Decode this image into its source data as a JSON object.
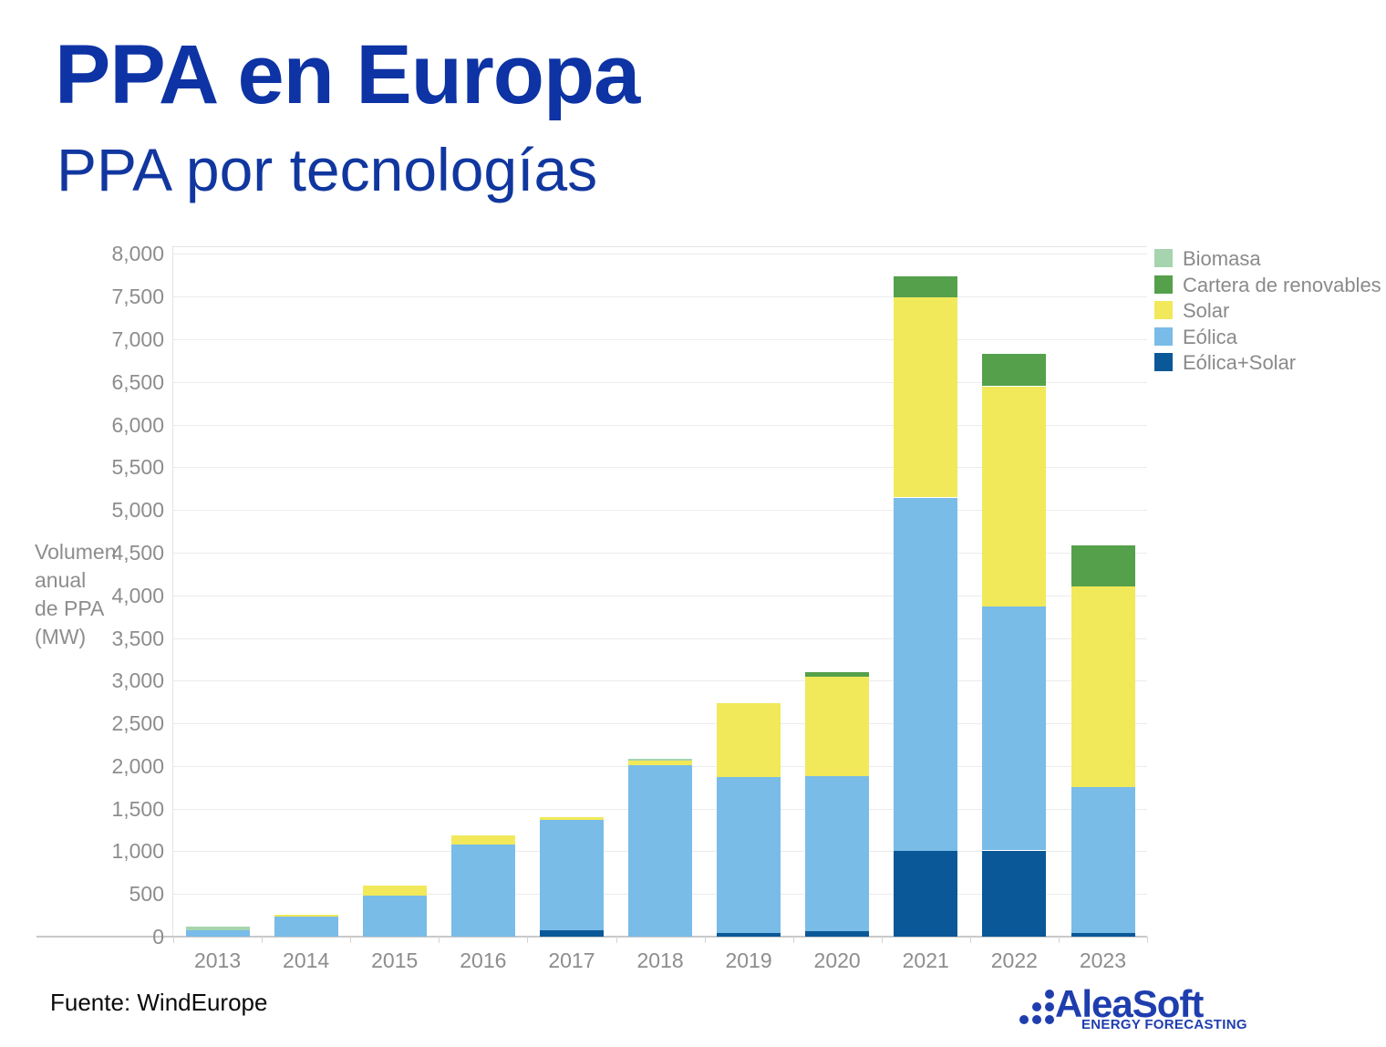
{
  "header": {
    "title": "PPA en Europa",
    "subtitle": "PPA por tecnologías"
  },
  "chart_data": {
    "type": "bar",
    "stacked": true,
    "categories": [
      "2013",
      "2014",
      "2015",
      "2016",
      "2017",
      "2018",
      "2019",
      "2020",
      "2021",
      "2022",
      "2023"
    ],
    "unit": "MW",
    "ylabel_lines": [
      "Volumen",
      "anual",
      "de PPA",
      "(MW)"
    ],
    "ylim": [
      0,
      8000
    ],
    "ytick_step": 500,
    "grid": true,
    "legend_position": "right",
    "series": [
      {
        "name": "Eólica+Solar",
        "color": "#0a5897",
        "values": [
          0,
          0,
          0,
          0,
          75,
          0,
          40,
          60,
          1005,
          1010,
          45
        ]
      },
      {
        "name": "Eólica",
        "color": "#79bce8",
        "values": [
          75,
          240,
          485,
          1075,
          1295,
          2010,
          1830,
          1820,
          4140,
          2855,
          1710
        ]
      },
      {
        "name": "Solar",
        "color": "#f1e95a",
        "values": [
          0,
          20,
          115,
          115,
          35,
          50,
          865,
          1165,
          2345,
          2585,
          2345
        ]
      },
      {
        "name": "Cartera de renovables",
        "color": "#55a04b",
        "values": [
          0,
          0,
          0,
          0,
          0,
          0,
          0,
          60,
          250,
          380,
          480
        ]
      },
      {
        "name": "Biomasa",
        "color": "#a6d4ae",
        "values": [
          45,
          0,
          0,
          0,
          0,
          20,
          0,
          0,
          0,
          0,
          0
        ]
      }
    ],
    "legend_order": [
      "Biomasa",
      "Cartera de renovables",
      "Solar",
      "Eólica",
      "Eólica+Solar"
    ]
  },
  "footer": {
    "source": "Fuente: WindEurope"
  },
  "logo": {
    "name": "AleaSoft",
    "tagline": "ENERGY FORECASTING"
  },
  "colors": {
    "title_blue": "#0d33a4",
    "subtitle_blue": "#11379f",
    "logo_blue": "#1f3eae",
    "axis_text_gray": "#8d8d8d",
    "legend_text_gray": "#8a8a8a",
    "gridline_gray": "#ececec",
    "axis_line_gray": "#c9c9c9"
  }
}
